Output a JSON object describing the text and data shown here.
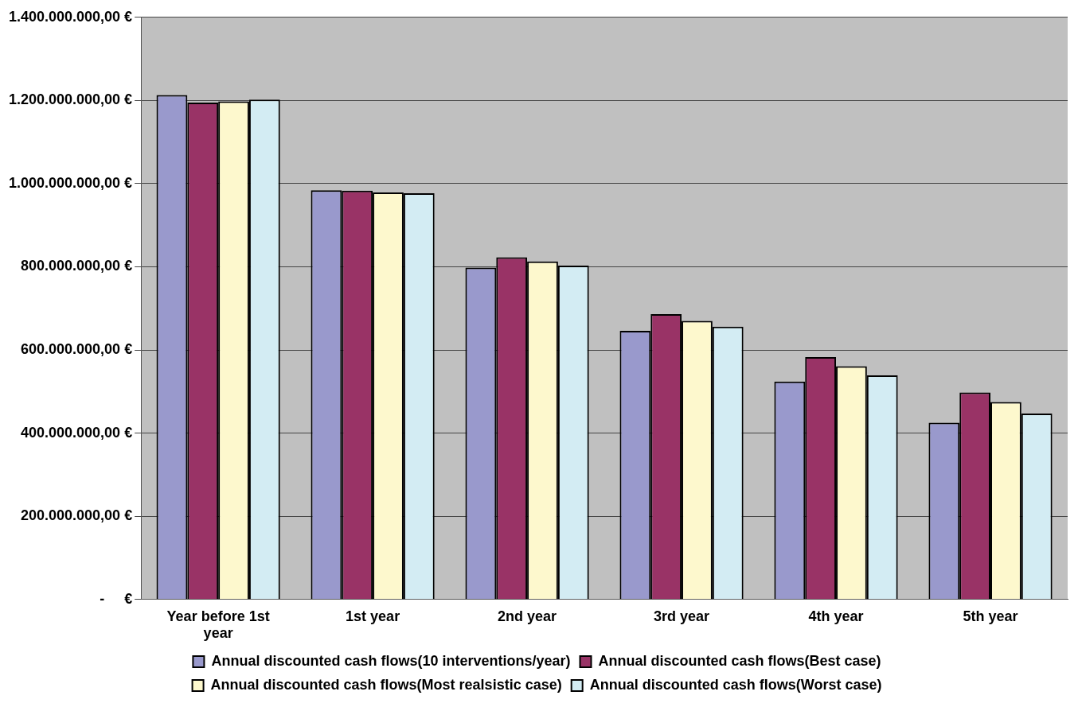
{
  "chart_data": {
    "type": "bar",
    "categories": [
      "Year before 1st year",
      "1st year",
      "2nd year",
      "3rd year",
      "4th year",
      "5th year"
    ],
    "series": [
      {
        "name": "Annual discounted cash flows(10 interventions/year)",
        "color": "#9999cc",
        "values": [
          1213000000,
          984000000,
          798000000,
          646000000,
          524000000,
          425000000
        ]
      },
      {
        "name": "Annual discounted cash flows(Best case)",
        "color": "#993366",
        "values": [
          1195000000,
          983000000,
          823000000,
          686000000,
          583000000,
          498000000
        ]
      },
      {
        "name": "Annual discounted cash flows(Most realsistic case)",
        "color": "#fdf8cd",
        "values": [
          1198000000,
          979000000,
          813000000,
          670000000,
          561000000,
          475000000
        ]
      },
      {
        "name": "Annual discounted cash flows(Worst case)",
        "color": "#d3ecf3",
        "values": [
          1202000000,
          977000000,
          803000000,
          656000000,
          539000000,
          447000000
        ]
      }
    ],
    "ylim": [
      0,
      1400000000
    ],
    "yticks": [
      {
        "value": 0,
        "label": "-     €"
      },
      {
        "value": 200000000,
        "label": "200.000.000,00 €"
      },
      {
        "value": 400000000,
        "label": "400.000.000,00 €"
      },
      {
        "value": 600000000,
        "label": "600.000.000,00 €"
      },
      {
        "value": 800000000,
        "label": "800.000.000,00 €"
      },
      {
        "value": 1000000000,
        "label": "1.000.000.000,00 €"
      },
      {
        "value": 1200000000,
        "label": "1.200.000.000,00 €"
      },
      {
        "value": 1400000000,
        "label": "1.400.000.000,00 €"
      }
    ],
    "grid": "y",
    "legend": "bottom"
  }
}
